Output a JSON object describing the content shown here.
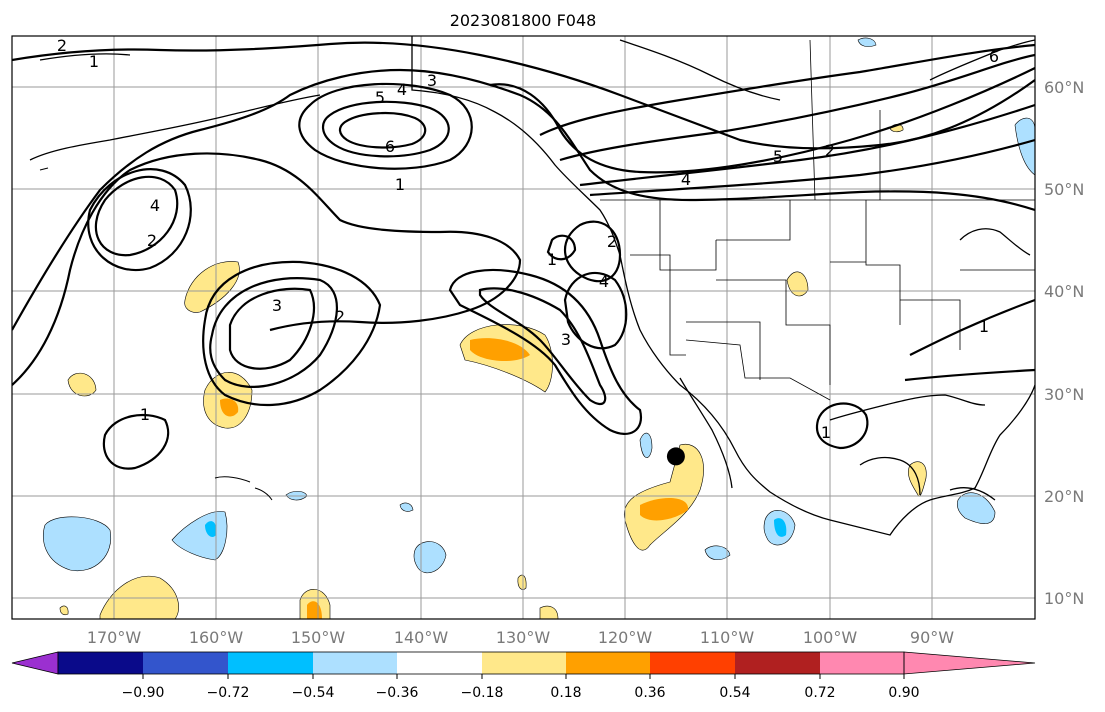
{
  "title": "2023081800 F048",
  "map": {
    "lon_range": [
      -180,
      -80
    ],
    "lat_range": [
      8,
      65
    ],
    "lon_ticks": [
      "170°W",
      "160°W",
      "150°W",
      "140°W",
      "130°W",
      "120°W",
      "110°W",
      "100°W",
      "90°W"
    ],
    "lat_ticks": [
      "60°N",
      "50°N",
      "40°N",
      "30°N",
      "20°N",
      "10°N"
    ],
    "marker": {
      "lon": -115.1,
      "lat": 23.9,
      "color": "#000000"
    },
    "contour_labels": [
      "2",
      "1",
      "3",
      "4",
      "5",
      "6",
      "1",
      "6",
      "5",
      "4",
      "4",
      "2",
      "2",
      "1",
      "2",
      "4",
      "3",
      "2",
      "3",
      "1",
      "1",
      "1"
    ]
  },
  "colorbar": {
    "labels": [
      "−0.90",
      "−0.72",
      "−0.54",
      "−0.36",
      "−0.18",
      "0.18",
      "0.36",
      "0.54",
      "0.72",
      "0.90"
    ],
    "colors": [
      "#9b30d0",
      "#0a0a8a",
      "#3355cc",
      "#00bfff",
      "#ade0ff",
      "#ffffff",
      "#ffe88a",
      "#ffa000",
      "#ff4000",
      "#b02020",
      "#ff88b0"
    ]
  }
}
